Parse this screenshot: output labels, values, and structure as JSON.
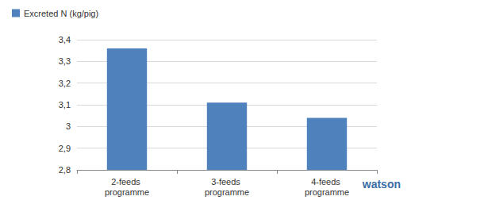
{
  "chart_data": {
    "type": "bar",
    "categories": [
      "2-feeds programme",
      "3-feeds programme",
      "4-feeds programme"
    ],
    "series": [
      {
        "name": "Excreted N (kg/pig)",
        "color": "#4f81bd",
        "values": [
          3.36,
          3.11,
          3.04
        ]
      }
    ],
    "ylim": [
      2.8,
      3.4
    ],
    "yticks": [
      {
        "value": 2.8,
        "label": "2,8"
      },
      {
        "value": 2.9,
        "label": "2,9"
      },
      3,
      {
        "value": 3.1,
        "label": "3,1"
      },
      {
        "value": 3.2,
        "label": "3,2"
      },
      {
        "value": 3.3,
        "label": "3,3"
      },
      {
        "value": 3.4,
        "label": "3,4"
      }
    ],
    "grid": true,
    "legend": "top-left",
    "annotation": "watson"
  }
}
